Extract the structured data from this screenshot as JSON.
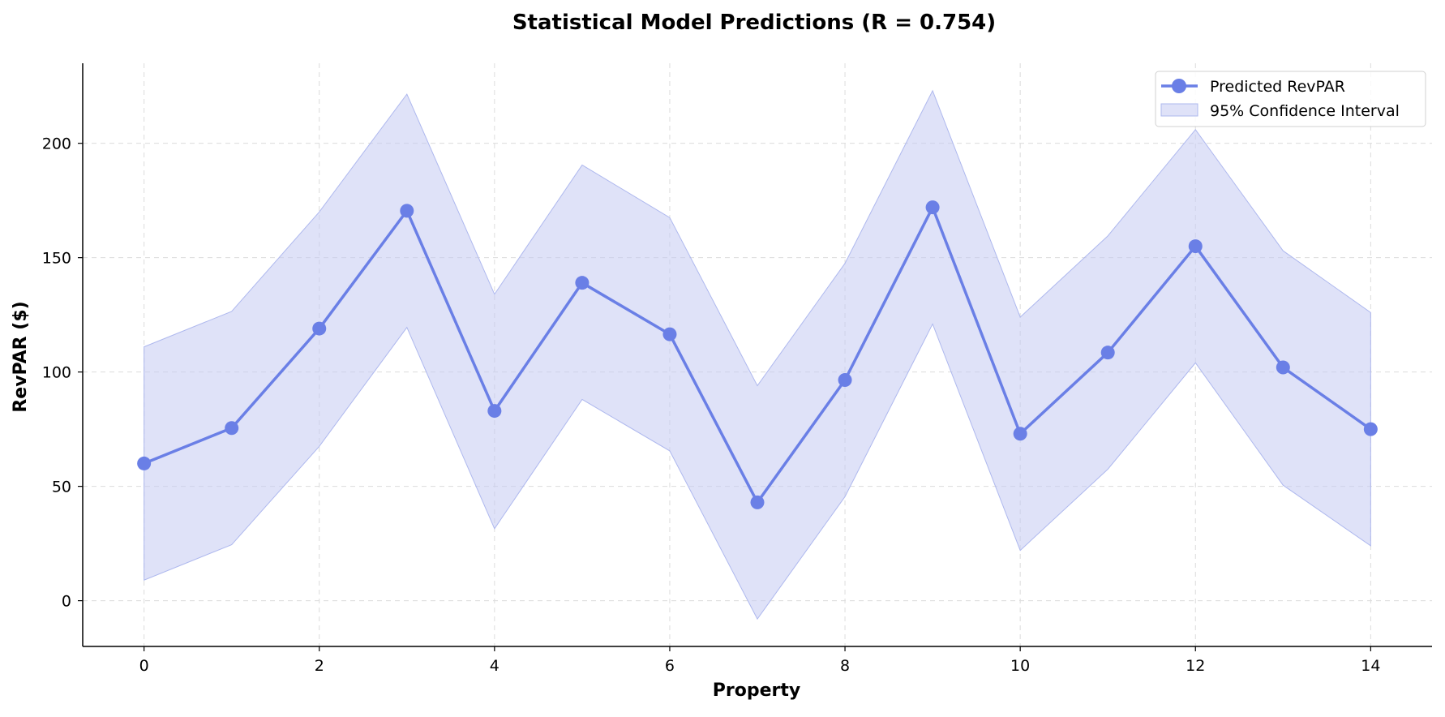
{
  "chart_data": {
    "type": "line",
    "title": "Statistical Model Predictions (R = 0.754)",
    "xlabel": "Property",
    "ylabel": "RevPAR ($)",
    "x": [
      0,
      1,
      2,
      3,
      4,
      5,
      6,
      7,
      8,
      9,
      10,
      11,
      12,
      13,
      14
    ],
    "xlim": [
      -0.7,
      14.7
    ],
    "ylim": [
      -20,
      235
    ],
    "xticks": [
      0,
      2,
      4,
      6,
      8,
      10,
      12,
      14
    ],
    "yticks": [
      0,
      50,
      100,
      150,
      200
    ],
    "grid": true,
    "legend_position": "top-right",
    "series": [
      {
        "name": "Predicted RevPAR",
        "type": "line",
        "color": "#6a7fe6",
        "marker": "circle",
        "values": [
          60,
          75.5,
          119,
          170.5,
          83,
          139,
          116.5,
          43,
          96.5,
          172,
          73,
          108.5,
          155,
          102,
          75
        ]
      }
    ],
    "bands": [
      {
        "name": "95% Confidence Interval",
        "type": "area",
        "color": "#c5cbf3",
        "lower": [
          9,
          24.5,
          67.5,
          119.5,
          31.5,
          88,
          65.5,
          -8,
          45.5,
          121,
          22,
          57.5,
          104,
          50.5,
          24
        ],
        "upper": [
          111,
          126.5,
          170,
          221.5,
          134,
          190.5,
          167.5,
          94,
          147.5,
          223,
          124,
          159.5,
          206,
          153,
          126
        ]
      }
    ]
  }
}
